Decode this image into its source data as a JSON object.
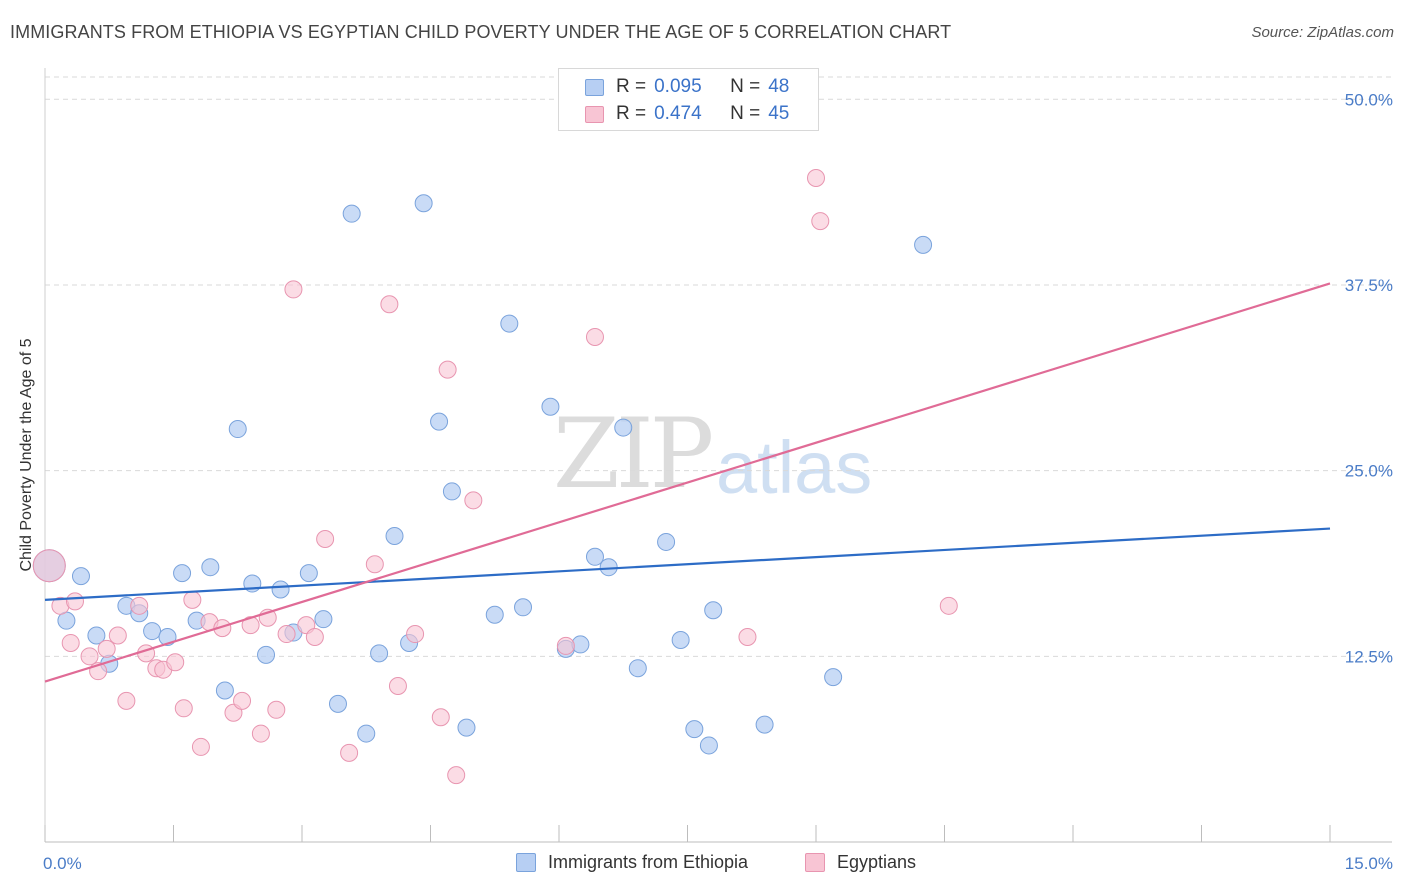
{
  "title": "IMMIGRANTS FROM ETHIOPIA VS EGYPTIAN CHILD POVERTY UNDER THE AGE OF 5 CORRELATION CHART",
  "source": "Source: ZipAtlas.com",
  "watermark": {
    "zip": "ZIP",
    "atlas": "atlas"
  },
  "legend": {
    "ethiopia": {
      "r_label": "R =",
      "r_value": "0.095",
      "n_label": "N =",
      "n_value": "48"
    },
    "egyptians": {
      "r_label": "R =",
      "r_value": "0.474",
      "n_label": "N =",
      "n_value": "45"
    }
  },
  "bottom_legend": {
    "ethiopia": "Immigrants from Ethiopia",
    "egyptians": "Egyptians"
  },
  "colors": {
    "ethiopia_fill": "#b7cff3",
    "ethiopia_stroke": "#7aa3dc",
    "ethiopia_line": "#2d6cc6",
    "egyptians_fill": "#f8c5d4",
    "egyptians_stroke": "#e895b0",
    "egyptians_line": "#e06b96",
    "tick_text": "#4a7cc7",
    "grid": "#d9d9d9"
  },
  "chart_data": {
    "type": "scatter",
    "title": "IMMIGRANTS FROM ETHIOPIA VS EGYPTIAN CHILD POVERTY UNDER THE AGE OF 5 CORRELATION CHART",
    "xlabel": "",
    "ylabel": "Child Poverty Under the Age of 5",
    "xlim": [
      0,
      15
    ],
    "ylim": [
      0,
      51.5
    ],
    "x_tick_labels": [
      "0.0%",
      "15.0%"
    ],
    "y_ticks": [
      12.5,
      25.0,
      37.5,
      50.0
    ],
    "y_tick_labels": [
      "12.5%",
      "25.0%",
      "37.5%",
      "50.0%"
    ],
    "grid": true,
    "legend_position": "top-center",
    "series": [
      {
        "name": "Immigrants from Ethiopia",
        "r": 0.095,
        "n": 48,
        "trend": {
          "x": [
            0,
            15
          ],
          "y": [
            16.3,
            21.1
          ]
        },
        "points": [
          [
            0.05,
            18.6
          ],
          [
            0.42,
            17.9
          ],
          [
            0.25,
            14.9
          ],
          [
            0.6,
            13.9
          ],
          [
            0.75,
            12.0
          ],
          [
            0.95,
            15.9
          ],
          [
            1.1,
            15.4
          ],
          [
            1.25,
            14.2
          ],
          [
            1.43,
            13.8
          ],
          [
            1.6,
            18.1
          ],
          [
            1.77,
            14.9
          ],
          [
            1.93,
            18.5
          ],
          [
            2.1,
            10.2
          ],
          [
            2.25,
            27.8
          ],
          [
            2.42,
            17.4
          ],
          [
            2.58,
            12.6
          ],
          [
            2.75,
            17.0
          ],
          [
            2.9,
            14.1
          ],
          [
            3.08,
            18.1
          ],
          [
            3.25,
            15.0
          ],
          [
            3.42,
            9.3
          ],
          [
            3.58,
            42.3
          ],
          [
            3.75,
            7.3
          ],
          [
            3.9,
            12.7
          ],
          [
            4.08,
            20.6
          ],
          [
            4.25,
            13.4
          ],
          [
            4.42,
            43.0
          ],
          [
            4.6,
            28.3
          ],
          [
            4.75,
            23.6
          ],
          [
            4.92,
            7.7
          ],
          [
            5.25,
            15.3
          ],
          [
            5.42,
            34.9
          ],
          [
            5.58,
            15.8
          ],
          [
            5.9,
            29.3
          ],
          [
            6.08,
            13.0
          ],
          [
            6.25,
            13.3
          ],
          [
            6.42,
            19.2
          ],
          [
            6.58,
            18.5
          ],
          [
            6.75,
            27.9
          ],
          [
            6.92,
            11.7
          ],
          [
            7.25,
            20.2
          ],
          [
            7.42,
            13.6
          ],
          [
            7.58,
            7.6
          ],
          [
            7.75,
            6.5
          ],
          [
            7.8,
            15.6
          ],
          [
            8.4,
            7.9
          ],
          [
            9.2,
            11.1
          ],
          [
            10.25,
            40.2
          ]
        ]
      },
      {
        "name": "Egyptians",
        "r": 0.474,
        "n": 45,
        "trend": {
          "x": [
            0,
            15
          ],
          "y": [
            10.8,
            37.6
          ]
        },
        "points": [
          [
            0.05,
            18.6
          ],
          [
            0.18,
            15.9
          ],
          [
            0.35,
            16.2
          ],
          [
            0.3,
            13.4
          ],
          [
            0.52,
            12.5
          ],
          [
            0.62,
            11.5
          ],
          [
            0.72,
            13.0
          ],
          [
            0.85,
            13.9
          ],
          [
            0.95,
            9.5
          ],
          [
            1.1,
            15.9
          ],
          [
            1.18,
            12.7
          ],
          [
            1.3,
            11.7
          ],
          [
            1.38,
            11.6
          ],
          [
            1.52,
            12.1
          ],
          [
            1.62,
            9.0
          ],
          [
            1.72,
            16.3
          ],
          [
            1.82,
            6.4
          ],
          [
            1.92,
            14.8
          ],
          [
            2.07,
            14.4
          ],
          [
            2.2,
            8.7
          ],
          [
            2.3,
            9.5
          ],
          [
            2.4,
            14.6
          ],
          [
            2.52,
            7.3
          ],
          [
            2.6,
            15.1
          ],
          [
            2.7,
            8.9
          ],
          [
            2.82,
            14.0
          ],
          [
            2.9,
            37.2
          ],
          [
            3.05,
            14.6
          ],
          [
            3.15,
            13.8
          ],
          [
            3.27,
            20.4
          ],
          [
            3.55,
            6.0
          ],
          [
            3.85,
            18.7
          ],
          [
            4.02,
            36.2
          ],
          [
            4.12,
            10.5
          ],
          [
            4.32,
            14.0
          ],
          [
            4.62,
            8.4
          ],
          [
            4.7,
            31.8
          ],
          [
            4.8,
            4.5
          ],
          [
            5.0,
            23.0
          ],
          [
            6.08,
            13.2
          ],
          [
            6.42,
            34.0
          ],
          [
            8.2,
            13.8
          ],
          [
            9.0,
            44.7
          ],
          [
            9.05,
            41.8
          ],
          [
            10.55,
            15.9
          ]
        ]
      }
    ]
  }
}
